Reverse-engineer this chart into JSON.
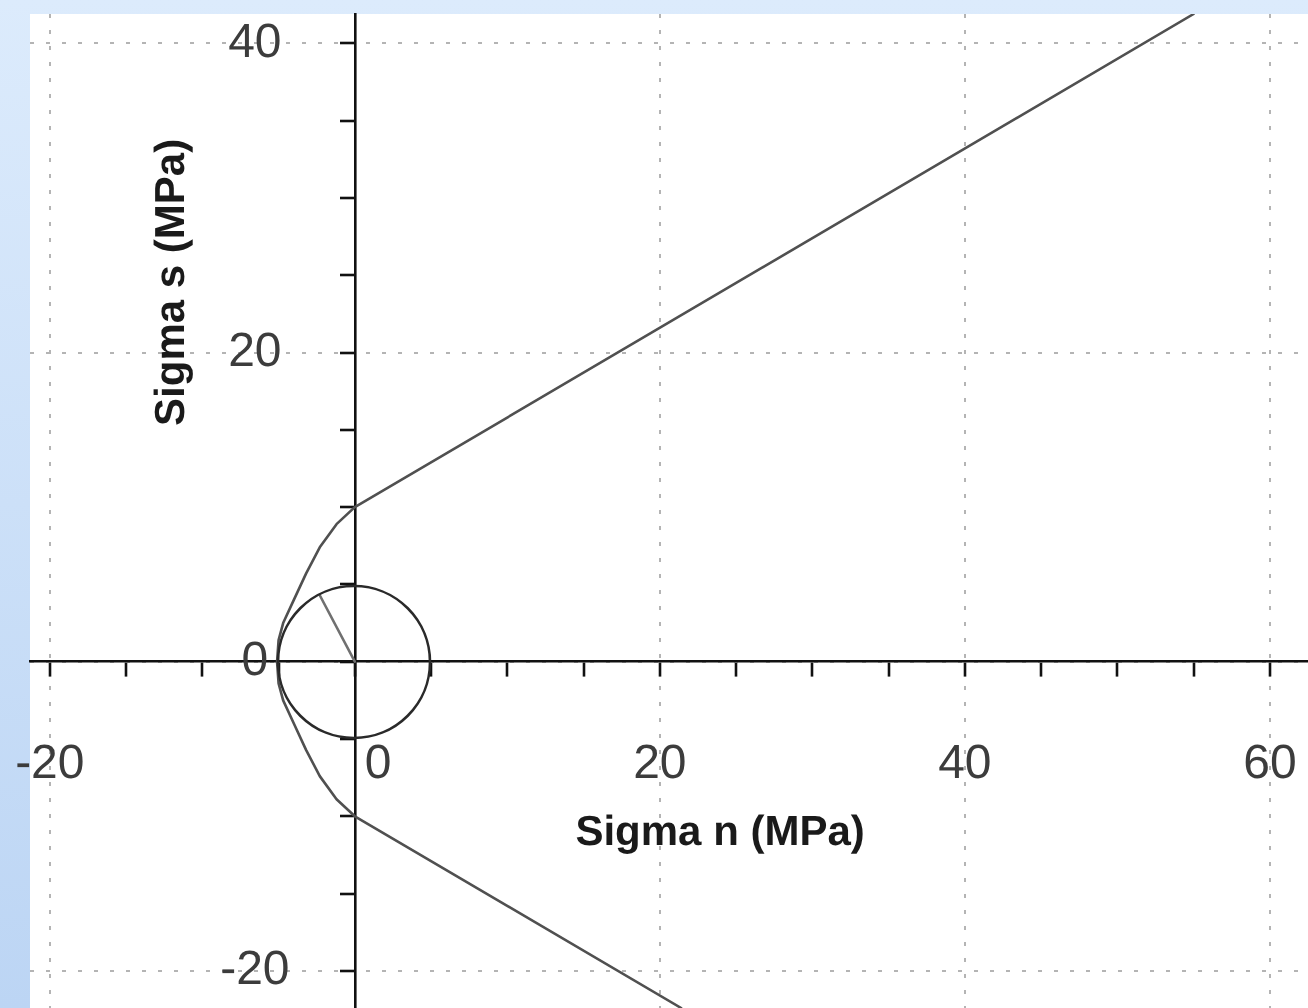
{
  "chart_data": {
    "type": "line",
    "xlabel": "Sigma n (MPa)",
    "ylabel": "Sigma s (MPa)",
    "xlim": [
      -21.3,
      62.5
    ],
    "ylim": [
      -22.4,
      41.9
    ],
    "xticks": [
      -20,
      {
        "value": -15,
        "label": null
      },
      {
        "value": -10,
        "label": null
      },
      {
        "value": -5,
        "label": null
      },
      0,
      {
        "value": 5,
        "label": null
      },
      {
        "value": 10,
        "label": null
      },
      {
        "value": 15,
        "label": null
      },
      20,
      {
        "value": 25,
        "label": null
      },
      {
        "value": 30,
        "label": null
      },
      {
        "value": 35,
        "label": null
      },
      40,
      {
        "value": 45,
        "label": null
      },
      {
        "value": 50,
        "label": null
      },
      {
        "value": 55,
        "label": null
      },
      60
    ],
    "yticks": [
      -20,
      {
        "value": -15,
        "label": null
      },
      {
        "value": -10,
        "label": null
      },
      {
        "value": -5,
        "label": null
      },
      0,
      {
        "value": 5,
        "label": null
      },
      {
        "value": 10,
        "label": null
      },
      {
        "value": 15,
        "label": null
      },
      20,
      {
        "value": 25,
        "label": null
      },
      {
        "value": 30,
        "label": null
      },
      {
        "value": 35,
        "label": null
      },
      40
    ],
    "grid": true,
    "series": [
      {
        "color": "#505050",
        "x": [
          21.4,
          0,
          -1.2,
          -2.3,
          -3.2,
          -4,
          -4.7,
          -5,
          -5.1,
          -5,
          -4.7,
          -4,
          -3.2,
          -2.3,
          -1.2,
          0,
          55
        ],
        "values": [
          -22.4,
          -10,
          -8.9,
          -7.4,
          -5.7,
          -4,
          -2.5,
          -1.4,
          0,
          1.4,
          2.5,
          4,
          5.7,
          7.4,
          8.9,
          10,
          41.9
        ]
      },
      {
        "color": "#707070",
        "x": [
          0,
          -2.3
        ],
        "values": [
          0,
          4.3
        ]
      }
    ]
  }
}
